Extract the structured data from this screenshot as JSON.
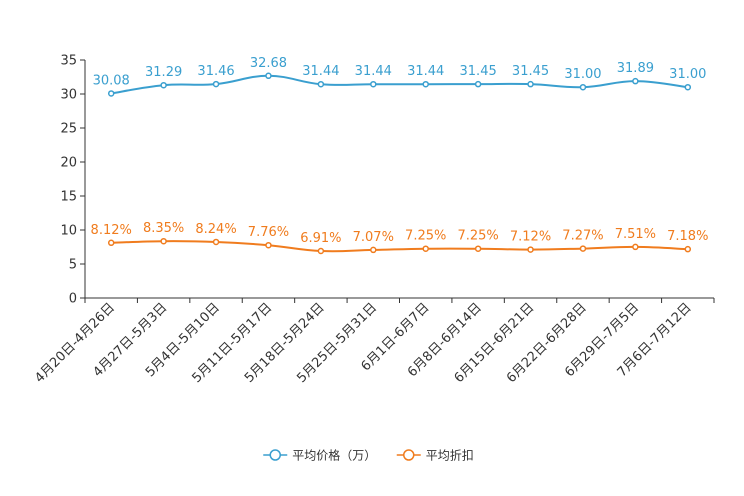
{
  "chart_data": {
    "type": "line",
    "title": "",
    "xlabel": "",
    "ylabel": "",
    "ylim": [
      0,
      35
    ],
    "yticks": [
      0,
      5,
      10,
      15,
      20,
      25,
      30,
      35
    ],
    "grid": false,
    "legend_position": "bottom-center",
    "categories": [
      "4月20日-4月26日",
      "4月27日-5月3日",
      "5月4日-5月10日",
      "5月11日-5月17日",
      "5月18日-5月24日",
      "5月25日-5月31日",
      "6月1日-6月7日",
      "6月8日-6月14日",
      "6月15日-6月21日",
      "6月22日-6月28日",
      "6月29日-7月5日",
      "7月6日-7月12日"
    ],
    "series": [
      {
        "name": "平均价格（万）",
        "color": "#3a9fcf",
        "values": [
          30.08,
          31.29,
          31.46,
          32.68,
          31.44,
          31.44,
          31.44,
          31.45,
          31.45,
          31.0,
          31.89,
          31.0
        ],
        "labels": [
          "30.08",
          "31.29",
          "31.46",
          "32.68",
          "31.44",
          "31.44",
          "31.44",
          "31.45",
          "31.45",
          "31.00",
          "31.89",
          "31.00"
        ]
      },
      {
        "name": "平均折扣",
        "color": "#f07c1e",
        "values": [
          8.12,
          8.35,
          8.24,
          7.76,
          6.91,
          7.07,
          7.25,
          7.25,
          7.12,
          7.27,
          7.51,
          7.18
        ],
        "labels": [
          "8.12%",
          "8.35%",
          "8.24%",
          "7.76%",
          "6.91%",
          "7.07%",
          "7.25%",
          "7.25%",
          "7.12%",
          "7.27%",
          "7.51%",
          "7.18%"
        ]
      }
    ]
  }
}
